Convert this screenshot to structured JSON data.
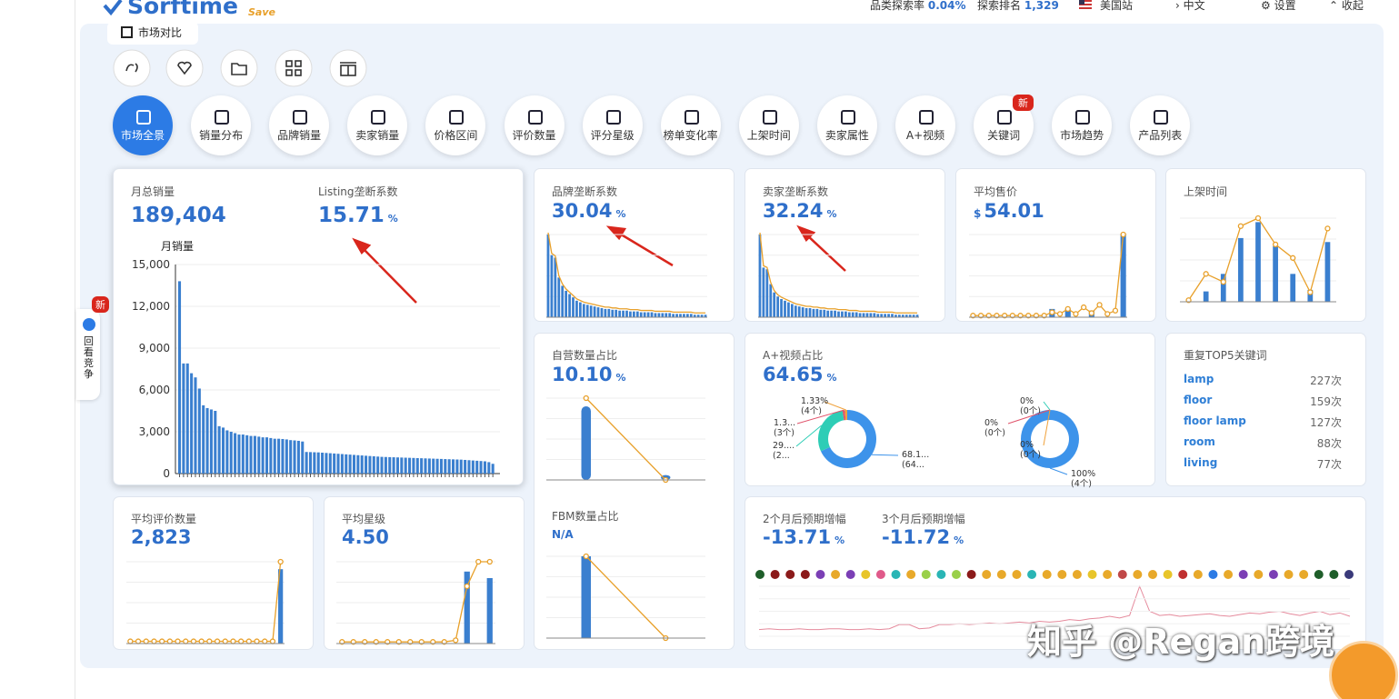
{
  "header": {
    "logo": "Sorftime",
    "logo_badge": "Save",
    "stats": [
      {
        "label": "品类探索率",
        "value": "0.04%"
      },
      {
        "label": "探索排名",
        "value": "1,329"
      }
    ],
    "site": "美国站",
    "language": "中文",
    "settings": "设置",
    "collapse": "收起"
  },
  "tab": "市场对比",
  "side": {
    "badge": "新",
    "label": "回看竞争"
  },
  "nav": {
    "items": [
      "市场全景",
      "销量分布",
      "品牌销量",
      "卖家销量",
      "价格区间",
      "评价数量",
      "评分星级",
      "榜单变化率",
      "上架时间",
      "卖家属性",
      "A+视频",
      "关键词",
      "市场趋势",
      "产品列表"
    ],
    "badge": "新"
  },
  "cards": {
    "monthly_sales": {
      "label": "月总销量",
      "value": "189,404",
      "chart": {
        "title": "月销量",
        "ylim": [
          0,
          15000
        ],
        "yticks": [
          0,
          {
            "value": 3000,
            "label": "3,000"
          },
          {
            "value": 6000,
            "label": "6,000"
          },
          {
            "value": 9000,
            "label": "9,000"
          },
          {
            "value": 12000,
            "label": "12,000"
          },
          {
            "value": 15000,
            "label": "15,000"
          }
        ],
        "values": [
          13800,
          7900,
          7900,
          7200,
          6900,
          6100,
          4900,
          4700,
          4600,
          4500,
          3400,
          3300,
          3100,
          3000,
          2900,
          2800,
          2800,
          2750,
          2700,
          2700,
          2650,
          2600,
          2600,
          2550,
          2500,
          2500,
          2480,
          2450,
          2400,
          2380,
          2350,
          2300,
          1550,
          1540,
          1530,
          1520,
          1500,
          1480,
          1460,
          1440,
          1420,
          1400,
          1380,
          1360,
          1340,
          1320,
          1300,
          1280,
          1260,
          1240,
          1220,
          1200,
          1190,
          1180,
          1170,
          1160,
          1150,
          1140,
          1130,
          1120,
          1110,
          1100,
          1090,
          1080,
          1070,
          1060,
          1050,
          1040,
          1030,
          1020,
          1010,
          1000,
          980,
          960,
          940,
          920,
          900,
          880,
          820,
          700
        ]
      }
    },
    "listing": {
      "label": "Listing垄断系数",
      "value": "15.71",
      "unit": "%"
    },
    "brand": {
      "label": "品牌垄断系数",
      "value": "30.04",
      "unit": "%",
      "bars": [
        100,
        75,
        72,
        48,
        38,
        32,
        28,
        24,
        20,
        18,
        16,
        15,
        14,
        13,
        12,
        11,
        10,
        10,
        9,
        9,
        8,
        8,
        8,
        7,
        7,
        7,
        6,
        6,
        6,
        6,
        5,
        5,
        5,
        5,
        5,
        4,
        4,
        4,
        4,
        4,
        4,
        3,
        3,
        3,
        3
      ]
    },
    "seller": {
      "label": "卖家垄断系数",
      "value": "32.24",
      "unit": "%",
      "bars": [
        100,
        60,
        58,
        40,
        30,
        25,
        22,
        20,
        18,
        16,
        14,
        13,
        12,
        11,
        11,
        10,
        10,
        9,
        9,
        8,
        8,
        8,
        7,
        7,
        7,
        6,
        6,
        6,
        5,
        5,
        5,
        5,
        5,
        4,
        4,
        4,
        4,
        4,
        3,
        3,
        3,
        3,
        3,
        3,
        3
      ]
    },
    "price": {
      "label": "平均售价",
      "currency": "$",
      "value": "54.01",
      "bars": [
        0,
        0,
        0,
        0,
        0,
        0,
        0,
        0,
        0,
        0,
        10,
        0,
        10,
        0,
        0,
        8,
        0,
        0,
        0,
        100
      ],
      "line": [
        2,
        2,
        2,
        2,
        2,
        2,
        2,
        2,
        2,
        2,
        6,
        4,
        10,
        4,
        12,
        5,
        15,
        4,
        8,
        100
      ]
    },
    "listing_time": {
      "label": "上架时间",
      "bars": [
        0,
        13,
        35,
        80,
        100,
        70,
        35,
        15,
        75
      ],
      "line": [
        2,
        35,
        25,
        95,
        105,
        72,
        55,
        12,
        92
      ]
    },
    "self_operated": {
      "label": "自营数量占比",
      "value": "10.10",
      "unit": "%",
      "bars": [
        90,
        6
      ],
      "line": [
        100,
        0
      ]
    },
    "fbm": {
      "label": "FBM数量占比",
      "value": "N/A",
      "bars": [
        100,
        0
      ],
      "line": [
        100,
        0
      ]
    },
    "aplus": {
      "label": "A+视频占比",
      "value": "64.65",
      "unit": "%",
      "donuts": [
        {
          "segments": [
            {
              "value": 68.12,
              "label": "68.1...",
              "count": "(64...",
              "color": "#3d93ea"
            },
            {
              "value": 29.27,
              "label": "29....",
              "count": "(2...",
              "color": "#2ecdb6"
            },
            {
              "value": 1.3,
              "label": "1.3...",
              "count": "(3个)",
              "color": "#e0526a"
            },
            {
              "value": 1.33,
              "label": "1.33%",
              "count": "(4个)",
              "color": "#f0a23c"
            }
          ]
        },
        {
          "segments": [
            {
              "value": 100,
              "label": "100%",
              "count": "(4个)",
              "color": "#3d93ea"
            },
            {
              "value": 0,
              "label": "0%",
              "count": "(0个)",
              "color": "#2ecdb6"
            },
            {
              "value": 0,
              "label": "0%",
              "count": "(0个)",
              "color": "#e0526a"
            },
            {
              "value": 0,
              "label": "0%",
              "count": "(0个)",
              "color": "#f0a23c"
            }
          ]
        }
      ]
    },
    "keywords": {
      "label": "重复TOP5关键词",
      "rows": [
        {
          "name": "lamp",
          "count": "227次"
        },
        {
          "name": "floor",
          "count": "159次"
        },
        {
          "name": "floor lamp",
          "count": "127次"
        },
        {
          "name": "room",
          "count": "88次"
        },
        {
          "name": "living",
          "count": "77次"
        }
      ]
    },
    "reviews": {
      "label": "平均评价数量",
      "value": "2,823",
      "bars": [
        0,
        0,
        0,
        0,
        0,
        0,
        0,
        0,
        0,
        0,
        0,
        0,
        0,
        0,
        0,
        0,
        0,
        0,
        0,
        100
      ],
      "line": [
        3,
        3,
        3,
        3,
        3,
        3,
        3,
        3,
        3,
        3,
        3,
        3,
        3,
        3,
        3,
        3,
        3,
        3,
        3,
        110
      ]
    },
    "rating": {
      "label": "平均星级",
      "value": "4.50",
      "bars": [
        0,
        0,
        0,
        0,
        0,
        0,
        0,
        0,
        0,
        0,
        0,
        88,
        0,
        80
      ],
      "line": [
        2,
        2,
        2,
        2,
        2,
        2,
        2,
        2,
        2,
        2,
        4,
        70,
        100,
        100
      ]
    },
    "forecast": {
      "items": [
        {
          "label": "2个月后预期增幅",
          "value": "-13.71",
          "unit": "%"
        },
        {
          "label": "3个月后预期增幅",
          "value": "-11.72",
          "unit": "%"
        }
      ],
      "dots": [
        "#1f5e2a",
        "#8b1a1a",
        "#8b1a1a",
        "#8b1a1a",
        "#7b3fb5",
        "#e8a92a",
        "#7b3fb5",
        "#e8c52a",
        "#e05a8a",
        "#2ab5b5",
        "#e8a92a",
        "#9ad04a",
        "#2ab5b5",
        "#9ad04a",
        "#8b1a1a",
        "#e8a92a",
        "#e8a92a",
        "#e8a92a",
        "#2ab5b5",
        "#e8a92a",
        "#e8a92a",
        "#e8a92a",
        "#e8c52a",
        "#e8a92a",
        "#c04848",
        "#e8a92a",
        "#e8a92a",
        "#e8c52a",
        "#c03030",
        "#e8a92a",
        "#2c7be5",
        "#e8a92a",
        "#7b3fb5",
        "#e8a92a",
        "#7b3fb5",
        "#e8a92a",
        "#e8a92a",
        "#1f5e2a",
        "#1f5e2a",
        "#3a3a7a"
      ],
      "line": [
        8,
        9,
        8,
        8,
        9,
        8,
        8,
        9,
        9,
        8,
        8,
        9,
        8,
        9,
        14,
        14,
        9,
        10,
        14,
        14,
        15,
        14,
        15,
        16,
        15,
        16,
        17,
        16,
        18,
        17,
        18,
        20,
        19,
        21,
        22,
        24,
        22,
        25,
        60,
        30,
        25,
        26,
        24,
        25,
        26,
        27,
        25,
        24,
        26,
        28,
        27,
        29,
        30,
        27,
        25,
        28,
        30,
        26,
        28,
        24
      ]
    }
  },
  "watermark": "知乎 @Regan跨境"
}
